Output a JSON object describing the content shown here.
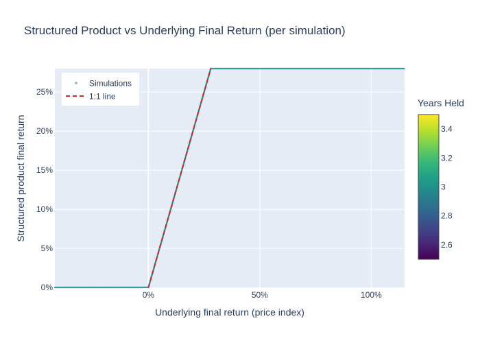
{
  "chart_data": {
    "type": "scatter",
    "title": "Structured Product vs Underlying Final Return (per simulation)",
    "xlabel": "Underlying final return (price index)",
    "ylabel": "Structured product final return",
    "xlim": [
      -0.42,
      1.15
    ],
    "ylim": [
      0,
      0.28
    ],
    "x_ticks": [
      0,
      0.5,
      1.0
    ],
    "x_tick_labels": [
      "0%",
      "50%",
      "100%"
    ],
    "y_ticks": [
      0,
      0.05,
      0.1,
      0.15,
      0.2,
      0.25
    ],
    "y_tick_labels": [
      "0%",
      "5%",
      "10%",
      "15%",
      "20%",
      "25%"
    ],
    "grid": true,
    "legend_position": "top-left",
    "series": [
      {
        "name": "Simulations",
        "kind": "markers",
        "color": "#21918c",
        "payoff": {
          "floor": 0,
          "cap": 0.28,
          "participation": 1.0
        },
        "x_range": [
          -0.42,
          1.15
        ]
      },
      {
        "name": "1:1 line",
        "kind": "dashed-line",
        "color": "#d62728",
        "x": [
          0,
          0.28
        ],
        "y": [
          0,
          0.28
        ]
      }
    ],
    "colorbar": {
      "title": "Years Held",
      "colorscale": "Viridis",
      "range": [
        2.5,
        3.5
      ],
      "tick_values": [
        2.6,
        2.8,
        3.0,
        3.2,
        3.4
      ],
      "tick_labels": [
        "2.6",
        "2.8",
        "3",
        "3.2",
        "3.4"
      ],
      "colors": [
        "#440154",
        "#482878",
        "#3e4989",
        "#31688e",
        "#26828e",
        "#1f9e89",
        "#35b779",
        "#6ece58",
        "#b5de2b",
        "#fde725"
      ]
    }
  },
  "style": {
    "plot_background": "#e5ecf6",
    "grid_color": "#ffffff",
    "text_color": "#2a3f5f"
  }
}
